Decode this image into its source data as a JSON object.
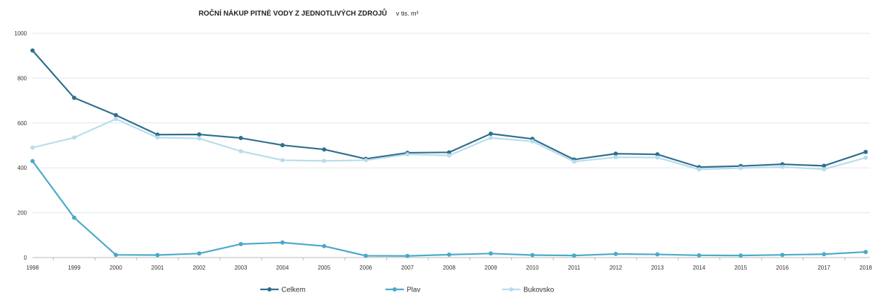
{
  "chart_data": {
    "type": "line",
    "title": "ROČNÍ NÁKUP PITNÉ VODY Z JEDNOTLIVÝCH ZDROJŮ",
    "title_unit": "v tis. m³",
    "xlabel": "",
    "ylabel": "",
    "ylim": [
      0,
      1000
    ],
    "yticks": [
      0,
      200,
      400,
      600,
      800,
      1000
    ],
    "y_tick_labels": [
      "0",
      "200",
      "400",
      "600",
      "800",
      "1000"
    ],
    "grid": true,
    "legend_position": "bottom",
    "categories": [
      "1998",
      "1999",
      "2000",
      "2001",
      "2002",
      "2003",
      "2004",
      "2005",
      "2006",
      "2007",
      "2008",
      "2009",
      "2010",
      "2011",
      "2012",
      "2013",
      "2014",
      "2015",
      "2016",
      "2017",
      "2018"
    ],
    "series": [
      {
        "name": "Celkem",
        "color": "#2e6f8e",
        "values": [
          923,
          712,
          635,
          548,
          549,
          533,
          501,
          482,
          440,
          467,
          469,
          552,
          529,
          437,
          463,
          460,
          403,
          408,
          416,
          409,
          471
        ]
      },
      {
        "name": "Plav",
        "color": "#4aa9c9",
        "values": [
          430,
          178,
          12,
          11,
          18,
          60,
          67,
          51,
          8,
          7,
          13,
          18,
          11,
          9,
          16,
          14,
          10,
          9,
          12,
          15,
          25
        ]
      },
      {
        "name": "Bukovsko",
        "color": "#b9dcec",
        "values": [
          490,
          535,
          618,
          535,
          531,
          474,
          434,
          431,
          434,
          460,
          455,
          534,
          518,
          428,
          447,
          446,
          393,
          399,
          404,
          394,
          445
        ]
      }
    ]
  }
}
